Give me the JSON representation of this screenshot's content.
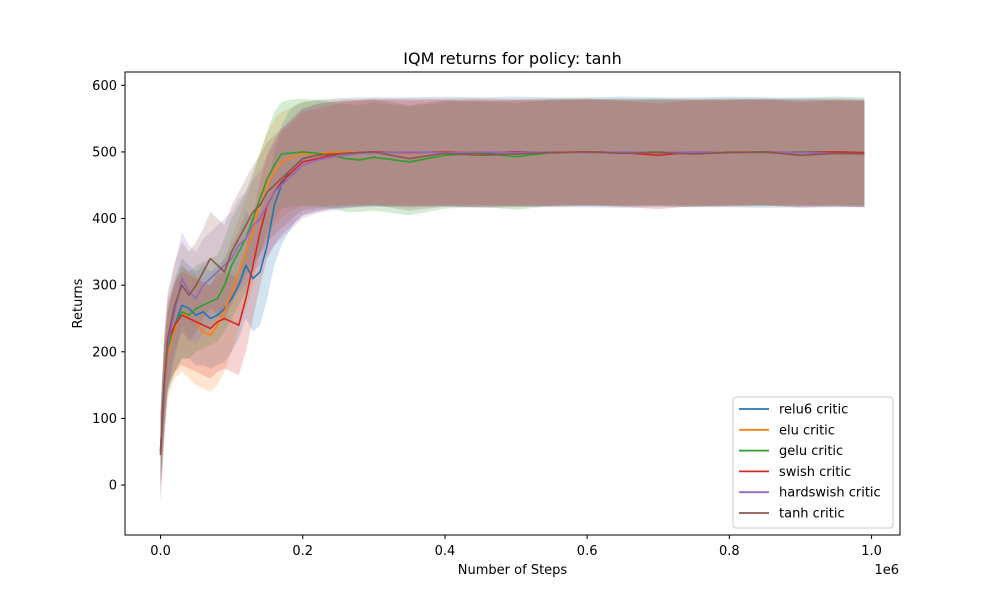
{
  "chart_data": {
    "type": "line",
    "title": "IQM returns for policy: tanh",
    "xlabel": "Number of Steps",
    "ylabel": "Returns",
    "x_offset_text": "1e6",
    "xlim": [
      -0.05,
      1.04
    ],
    "ylim": [
      -75,
      620
    ],
    "x_ticks": [
      0.0,
      0.2,
      0.4,
      0.6,
      0.8,
      1.0
    ],
    "x_tick_labels": [
      "0.0",
      "0.2",
      "0.4",
      "0.6",
      "0.8",
      "1.0"
    ],
    "y_ticks": [
      0,
      100,
      200,
      300,
      400,
      500,
      600
    ],
    "y_tick_labels": [
      "0",
      "100",
      "200",
      "300",
      "400",
      "500",
      "600"
    ],
    "grid": false,
    "legend_position": "lower-right",
    "x": [
      0.0,
      0.005,
      0.01,
      0.02,
      0.03,
      0.04,
      0.05,
      0.06,
      0.07,
      0.08,
      0.09,
      0.1,
      0.11,
      0.12,
      0.13,
      0.14,
      0.15,
      0.16,
      0.17,
      0.18,
      0.19,
      0.2,
      0.22,
      0.24,
      0.26,
      0.28,
      0.3,
      0.35,
      0.4,
      0.45,
      0.5,
      0.55,
      0.6,
      0.65,
      0.7,
      0.75,
      0.8,
      0.85,
      0.9,
      0.95,
      0.99
    ],
    "series": [
      {
        "name": "relu6 critic",
        "color": "#1f77b4",
        "values": [
          55,
          150,
          200,
          240,
          270,
          265,
          255,
          260,
          250,
          255,
          265,
          280,
          300,
          330,
          310,
          320,
          360,
          420,
          450,
          470,
          480,
          490,
          495,
          497,
          498,
          499,
          500,
          499,
          500,
          498,
          500,
          499,
          500,
          499,
          500,
          498,
          499,
          500,
          499,
          498,
          499
        ],
        "band_low": [
          0,
          90,
          140,
          170,
          190,
          190,
          180,
          180,
          175,
          180,
          185,
          200,
          220,
          250,
          230,
          240,
          280,
          330,
          360,
          380,
          395,
          405,
          412,
          415,
          416,
          417,
          418,
          417,
          418,
          417,
          418,
          417,
          417,
          416,
          417,
          417,
          417,
          416,
          417,
          417,
          417
        ],
        "band_high": [
          110,
          210,
          260,
          310,
          340,
          330,
          320,
          330,
          320,
          330,
          340,
          360,
          380,
          410,
          400,
          410,
          440,
          500,
          540,
          560,
          570,
          575,
          578,
          580,
          581,
          582,
          582,
          582,
          583,
          582,
          583,
          582,
          582,
          583,
          582,
          582,
          583,
          582,
          582,
          583,
          582
        ]
      },
      {
        "name": "elu critic",
        "color": "#ff7f0e",
        "values": [
          50,
          140,
          195,
          235,
          260,
          250,
          245,
          230,
          225,
          240,
          260,
          290,
          320,
          350,
          380,
          430,
          450,
          470,
          485,
          490,
          495,
          497,
          498,
          499,
          500,
          499,
          500,
          499,
          500,
          500,
          499,
          500,
          500,
          499,
          500,
          499,
          500,
          500,
          499,
          500,
          499
        ],
        "band_low": [
          -10,
          70,
          130,
          160,
          170,
          160,
          150,
          145,
          140,
          150,
          170,
          200,
          235,
          265,
          300,
          350,
          370,
          390,
          400,
          410,
          415,
          418,
          419,
          420,
          420,
          420,
          421,
          420,
          421,
          421,
          420,
          421,
          421,
          420,
          421,
          420,
          421,
          421,
          420,
          421,
          420
        ],
        "band_high": [
          110,
          210,
          260,
          300,
          330,
          320,
          315,
          300,
          300,
          320,
          340,
          370,
          400,
          430,
          460,
          500,
          530,
          550,
          560,
          565,
          570,
          575,
          577,
          578,
          579,
          579,
          580,
          579,
          580,
          580,
          579,
          580,
          580,
          579,
          580,
          579,
          580,
          580,
          579,
          580,
          579
        ]
      },
      {
        "name": "gelu critic",
        "color": "#2ca02c",
        "values": [
          50,
          145,
          205,
          240,
          260,
          255,
          265,
          270,
          275,
          280,
          300,
          330,
          350,
          370,
          400,
          430,
          460,
          480,
          497,
          498,
          499,
          500,
          498,
          495,
          490,
          488,
          492,
          485,
          495,
          498,
          493,
          499,
          500,
          499,
          500,
          498,
          500,
          499,
          500,
          500,
          499
        ],
        "band_low": [
          0,
          80,
          140,
          170,
          190,
          190,
          200,
          205,
          210,
          215,
          230,
          250,
          270,
          290,
          320,
          350,
          380,
          400,
          415,
          418,
          419,
          420,
          418,
          415,
          410,
          410,
          412,
          405,
          415,
          418,
          413,
          419,
          420,
          419,
          420,
          418,
          420,
          419,
          420,
          420,
          419
        ],
        "band_high": [
          100,
          210,
          265,
          305,
          330,
          320,
          330,
          335,
          340,
          345,
          370,
          400,
          420,
          440,
          470,
          500,
          530,
          560,
          575,
          578,
          579,
          580,
          578,
          575,
          572,
          570,
          574,
          568,
          575,
          578,
          573,
          579,
          580,
          579,
          580,
          578,
          580,
          579,
          580,
          580,
          579
        ]
      },
      {
        "name": "swish critic",
        "color": "#d62728",
        "values": [
          50,
          150,
          215,
          240,
          255,
          250,
          245,
          240,
          235,
          245,
          250,
          245,
          240,
          280,
          330,
          380,
          420,
          440,
          455,
          465,
          475,
          485,
          490,
          495,
          498,
          499,
          500,
          499,
          500,
          499,
          500,
          499,
          500,
          499,
          495,
          500,
          499,
          500,
          499,
          500,
          499
        ],
        "band_low": [
          0,
          90,
          150,
          170,
          180,
          175,
          170,
          165,
          160,
          170,
          175,
          170,
          165,
          200,
          250,
          300,
          340,
          360,
          375,
          385,
          395,
          405,
          410,
          415,
          417,
          418,
          419,
          418,
          419,
          418,
          419,
          418,
          419,
          418,
          414,
          419,
          418,
          419,
          418,
          419,
          418
        ],
        "band_high": [
          100,
          210,
          275,
          305,
          320,
          315,
          310,
          305,
          300,
          315,
          320,
          315,
          310,
          355,
          405,
          455,
          495,
          515,
          530,
          540,
          550,
          560,
          565,
          570,
          575,
          577,
          578,
          577,
          578,
          577,
          578,
          577,
          578,
          577,
          573,
          578,
          577,
          578,
          577,
          578,
          577
        ]
      },
      {
        "name": "hardswish critic",
        "color": "#9467bd",
        "values": [
          45,
          140,
          210,
          260,
          310,
          290,
          280,
          300,
          310,
          320,
          330,
          340,
          360,
          370,
          390,
          400,
          420,
          440,
          450,
          460,
          470,
          480,
          488,
          492,
          495,
          498,
          499,
          500,
          499,
          500,
          499,
          500,
          499,
          500,
          499,
          500,
          499,
          500,
          499,
          498,
          497
        ],
        "band_low": [
          -20,
          60,
          140,
          190,
          240,
          220,
          210,
          230,
          240,
          250,
          260,
          270,
          290,
          300,
          320,
          330,
          345,
          360,
          370,
          380,
          390,
          400,
          408,
          412,
          415,
          418,
          419,
          420,
          419,
          420,
          419,
          420,
          419,
          420,
          419,
          420,
          419,
          420,
          419,
          418,
          417
        ],
        "band_high": [
          110,
          220,
          280,
          330,
          380,
          360,
          350,
          370,
          380,
          390,
          400,
          410,
          430,
          440,
          460,
          470,
          495,
          520,
          535,
          545,
          555,
          565,
          572,
          575,
          577,
          578,
          579,
          580,
          579,
          580,
          579,
          580,
          579,
          580,
          579,
          580,
          579,
          580,
          579,
          578,
          577
        ]
      },
      {
        "name": "tanh critic",
        "color": "#8c564b",
        "values": [
          45,
          150,
          220,
          270,
          300,
          285,
          300,
          320,
          340,
          330,
          320,
          350,
          370,
          390,
          410,
          420,
          440,
          450,
          460,
          470,
          480,
          490,
          495,
          497,
          498,
          499,
          500,
          490,
          498,
          495,
          497,
          499,
          500,
          498,
          499,
          497,
          499,
          500,
          495,
          498,
          497
        ],
        "band_low": [
          -25,
          70,
          145,
          200,
          230,
          215,
          230,
          250,
          265,
          255,
          245,
          275,
          295,
          315,
          335,
          345,
          365,
          375,
          385,
          395,
          405,
          412,
          416,
          418,
          419,
          420,
          420,
          412,
          418,
          416,
          417,
          419,
          420,
          418,
          419,
          417,
          419,
          420,
          416,
          418,
          417
        ],
        "band_high": [
          110,
          225,
          290,
          335,
          365,
          350,
          365,
          385,
          410,
          400,
          390,
          420,
          440,
          460,
          480,
          495,
          515,
          525,
          535,
          545,
          555,
          565,
          572,
          575,
          577,
          578,
          579,
          570,
          577,
          575,
          577,
          578,
          579,
          577,
          578,
          577,
          578,
          579,
          575,
          577,
          577
        ]
      }
    ]
  }
}
